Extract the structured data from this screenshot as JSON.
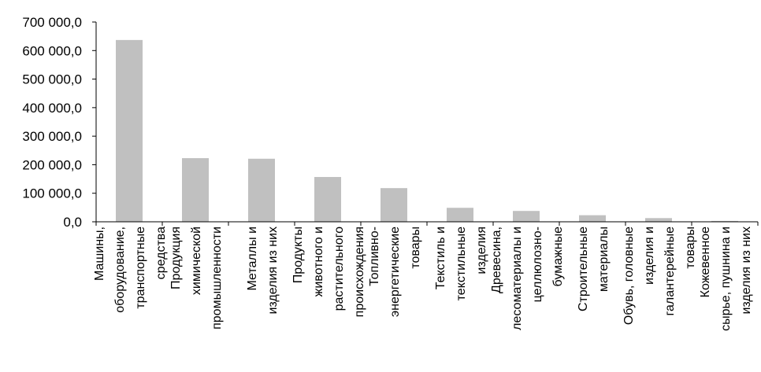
{
  "chart_data": {
    "type": "bar",
    "categories": [
      [
        "Машины,",
        "оборудование,",
        "транспортные",
        "средства"
      ],
      [
        "Продукция",
        "химической",
        "промышленности"
      ],
      [
        "Металлы и",
        "изделия из них"
      ],
      [
        "Продукты",
        "животного и",
        "растительного",
        "происхождения"
      ],
      [
        "Топливно-",
        "энергетические",
        "товары"
      ],
      [
        "Текстиль и",
        "текстильные",
        "изделия"
      ],
      [
        "Древесина,",
        "лесоматериалы и",
        "целлюлозно-",
        "бумажные"
      ],
      [
        "Строительные",
        "материалы"
      ],
      [
        "Обувь, головные",
        "изделия и",
        "галантерейные",
        "товары"
      ],
      [
        "Кожевенное",
        "сырье, пушнина и",
        "изделия из них"
      ]
    ],
    "values": [
      637000,
      223000,
      221000,
      157000,
      118000,
      49000,
      38000,
      23000,
      13000,
      3000
    ],
    "ytick_labels": [
      "0,0",
      "100 000,0",
      "200 000,0",
      "300 000,0",
      "400 000,0",
      "500 000,0",
      "600 000,0",
      "700 000,0"
    ],
    "ylim": [
      0,
      700000
    ],
    "grid": false,
    "legend": "none",
    "colors": {
      "bar": "#c0c0c0",
      "axis": "#000000"
    }
  }
}
